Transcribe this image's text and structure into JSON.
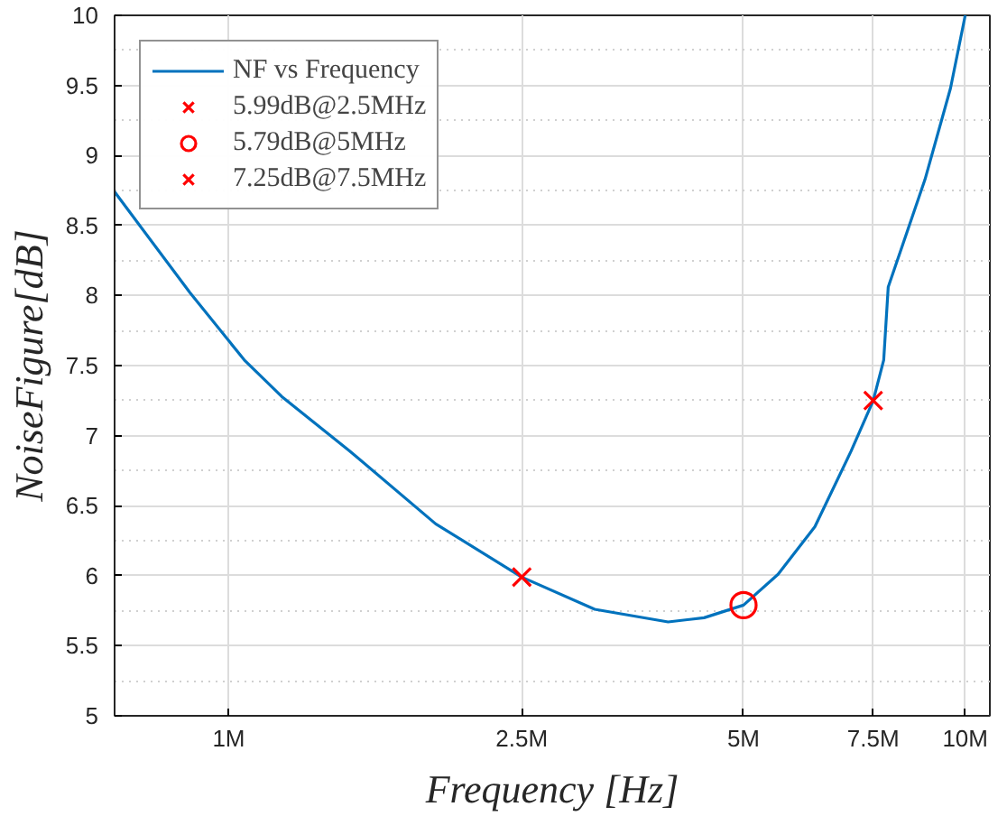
{
  "chart_data": {
    "type": "line",
    "xlabel": "Frequency [Hz]",
    "ylabel": "NoiseFigure[dB]",
    "log": "x",
    "grid": true,
    "legend": "top left",
    "xlim": [
      700000,
      10800000
    ],
    "ylim": [
      5,
      10
    ],
    "xticks": [
      {
        "value": 1000000,
        "label": "1M"
      },
      {
        "value": 2500000,
        "label": "2.5M"
      },
      {
        "value": 5000000,
        "label": "5M"
      },
      {
        "value": 7500000,
        "label": "7.5M"
      },
      {
        "value": 10000000,
        "label": "10M"
      }
    ],
    "yticks": [
      5,
      5.5,
      6,
      6.5,
      7,
      7.5,
      8,
      8.5,
      9,
      9.5,
      10
    ],
    "series": [
      {
        "name": "NF vs Frequency",
        "color": "#0072bd",
        "line_style": "solid",
        "x": [
          700000,
          886000,
          1050000,
          1180000,
          1460000,
          1910000,
          2500000,
          3140000,
          3950000,
          4420000,
          5000000,
          5570000,
          6250000,
          7000000,
          7500000,
          7750000,
          7860000,
          8820000,
          9550000,
          10000000
        ],
        "values": [
          8.74,
          8.02,
          7.54,
          7.28,
          6.89,
          6.37,
          5.99,
          5.76,
          5.67,
          5.7,
          5.79,
          6.01,
          6.35,
          6.89,
          7.25,
          7.54,
          8.06,
          8.83,
          9.48,
          10
        ]
      },
      {
        "name": "5.99dB@2.5MHz",
        "type": "scatter",
        "marker": "cross",
        "color": "#ff0000",
        "x": [
          2500000
        ],
        "values": [
          5.99
        ]
      },
      {
        "name": "5.79dB@5MHz",
        "type": "scatter",
        "marker": "circle",
        "color": "#ff0000",
        "x": [
          5000000
        ],
        "values": [
          5.79
        ]
      },
      {
        "name": "7.25dB@7.5MHz",
        "type": "scatter",
        "marker": "cross",
        "color": "#ff0000",
        "x": [
          7500000
        ],
        "values": [
          7.25
        ]
      }
    ]
  }
}
